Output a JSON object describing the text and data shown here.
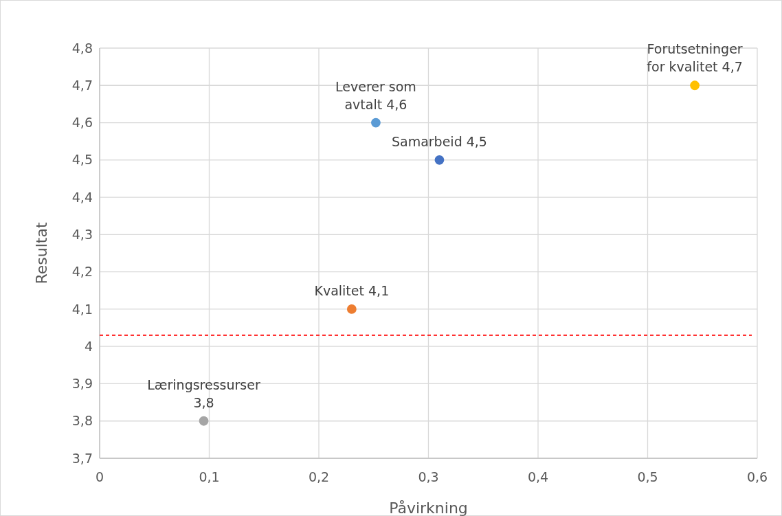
{
  "chart_data": {
    "type": "scatter",
    "xlabel": "Påvirkning",
    "ylabel": "Resultat",
    "xlim": [
      0,
      0.6
    ],
    "xticks": [
      0,
      {
        "value": 0.1,
        "label": "0,1"
      },
      {
        "value": 0.2,
        "label": "0,2"
      },
      {
        "value": 0.3,
        "label": "0,3"
      },
      {
        "value": 0.4,
        "label": "0,4"
      },
      {
        "value": 0.5,
        "label": "0,5"
      },
      {
        "value": 0.6,
        "label": "0,6"
      }
    ],
    "ylim": [
      3.7,
      4.8
    ],
    "yticks": [
      {
        "value": 3.7,
        "label": "3,7"
      },
      {
        "value": 3.8,
        "label": "3,8"
      },
      {
        "value": 3.9,
        "label": "3,9"
      },
      4,
      {
        "value": 4.1,
        "label": "4,1"
      },
      {
        "value": 4.2,
        "label": "4,2"
      },
      {
        "value": 4.3,
        "label": "4,3"
      },
      {
        "value": 4.4,
        "label": "4,4"
      },
      {
        "value": 4.5,
        "label": "4,5"
      },
      {
        "value": 4.6,
        "label": "4,6"
      },
      {
        "value": 4.7,
        "label": "4,7"
      },
      {
        "value": 4.8,
        "label": "4,8"
      }
    ],
    "grid": true,
    "marker": "circle",
    "series": [
      {
        "color": "#a5a5a5",
        "x": [
          0.095
        ],
        "values": [
          3.8
        ],
        "value_labels": [
          "Læringsressurser 3,8"
        ]
      },
      {
        "color": "#ed7d31",
        "x": [
          0.23
        ],
        "values": [
          4.1
        ],
        "value_labels": [
          "Kvalitet  4,1"
        ]
      },
      {
        "color": "#5b9bd5",
        "x": [
          0.252
        ],
        "values": [
          4.6
        ],
        "value_labels": [
          "Leverer som avtalt 4,6"
        ]
      },
      {
        "color": "#4472c4",
        "x": [
          0.31
        ],
        "values": [
          4.5
        ],
        "value_labels": [
          "Samarbeid  4,5"
        ]
      },
      {
        "color": "#ffc000",
        "x": [
          0.543
        ],
        "values": [
          4.7
        ],
        "value_labels": [
          "Forutsetninger for kvalitet 4,7"
        ]
      }
    ],
    "ref_lines": [
      {
        "axis": "y",
        "value": 4.03,
        "color": "#ff0000",
        "line_style": "dashed"
      }
    ]
  }
}
